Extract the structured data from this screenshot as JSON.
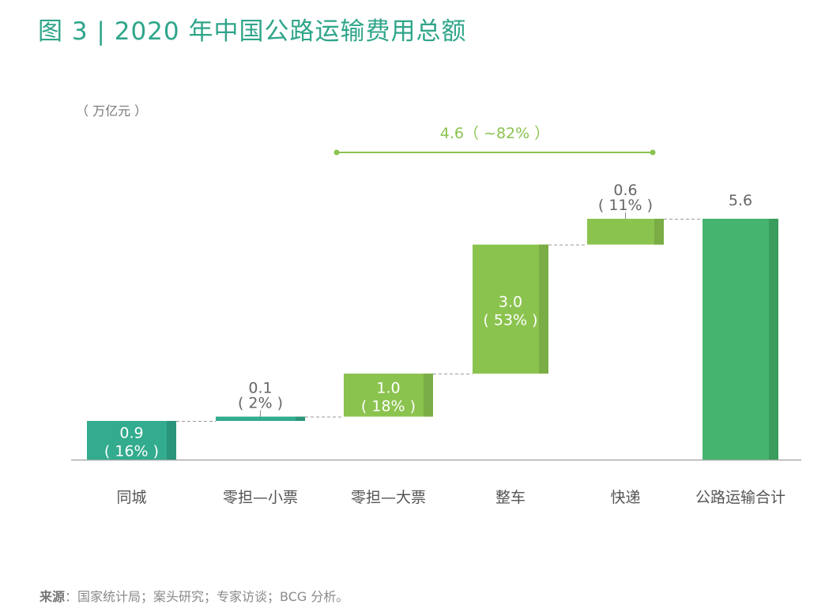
{
  "title": "图 3 | 2020 年中国公路运输费用总额",
  "source_label": "来源",
  "source_text": "：国家统计局；案头研究；专家访谈；BCG 分析。",
  "chart_data": {
    "type": "waterfall",
    "title": "图 3 | 2020 年中国公路运输费用总额",
    "unit_label": "（ 万亿元 ）",
    "categories": [
      "同城",
      "零担—小票",
      "零担—大票",
      "整车",
      "快递",
      "公路运输合计"
    ],
    "values": [
      0.9,
      0.1,
      1.0,
      3.0,
      0.6,
      5.6
    ],
    "value_labels": [
      "0.9",
      "0.1",
      "1.0",
      "3.0",
      "0.6",
      "5.6"
    ],
    "percent_labels": [
      "( 16% )",
      "( 2% )",
      "( 18% )",
      "( 53% )",
      "( 11% )",
      ""
    ],
    "is_total": [
      false,
      false,
      false,
      false,
      false,
      true
    ],
    "bracket": {
      "label": "4.6（ ~82% ）",
      "from_category": "零担—大票",
      "to_category": "快递"
    },
    "colors": {
      "teal": "#33AB8E",
      "teal_dark": "#2A957B",
      "green": "#8BC34F",
      "green_dark": "#7AAD45",
      "total": "#45B46F",
      "total_dark": "#3A9D5E",
      "title": "#2FA58A"
    },
    "bar_color_keys": [
      "teal",
      "teal",
      "green",
      "green",
      "green",
      "total"
    ],
    "ylim": [
      0,
      5.6
    ]
  }
}
